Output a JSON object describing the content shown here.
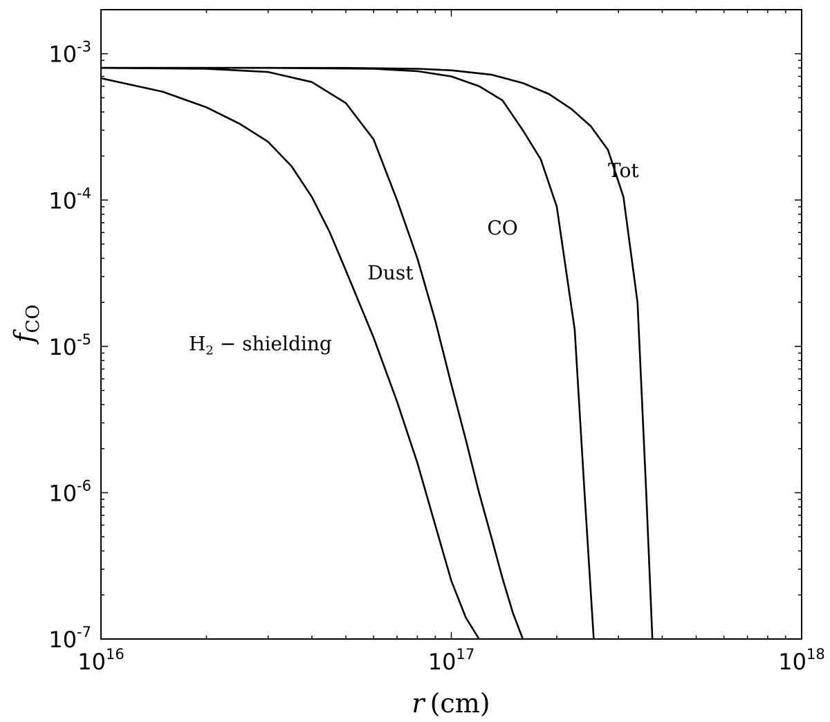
{
  "chart_data": {
    "type": "line",
    "title": "",
    "xlabel": {
      "var": "r",
      "unit": "(cm)"
    },
    "ylabel": {
      "var": "f",
      "sub": "CO"
    },
    "x_scale": "log",
    "y_scale": "log",
    "xlim": [
      1e+16,
      1e+18
    ],
    "ylim": [
      1e-07,
      0.002
    ],
    "grid": false,
    "legend": "none",
    "line_color": "#000000",
    "x_ticks": [
      {
        "value": 1e+16,
        "base": "10",
        "exp": "16"
      },
      {
        "value": 1e+17,
        "base": "10",
        "exp": "17"
      },
      {
        "value": 1e+18,
        "base": "10",
        "exp": "18"
      }
    ],
    "y_ticks": [
      {
        "value": 0.001,
        "base": "10",
        "exp": "-3"
      },
      {
        "value": 0.0001,
        "base": "10",
        "exp": "-4"
      },
      {
        "value": 1e-05,
        "base": "10",
        "exp": "-5"
      },
      {
        "value": 1e-06,
        "base": "10",
        "exp": "-6"
      },
      {
        "value": 1e-07,
        "base": "10",
        "exp": "-7"
      }
    ],
    "series": [
      {
        "name": "H2 - shielding",
        "label": {
          "main": "H",
          "sub": "2",
          "rest": " − shielding"
        },
        "x": [
          1e+16,
          1.5e+16,
          2e+16,
          2.5e+16,
          3e+16,
          3.5e+16,
          4e+16,
          4.5e+16,
          5e+16,
          5.5e+16,
          6e+16,
          7e+16,
          8e+16,
          9e+16,
          1e+17,
          1.1e+17,
          1.2e+17
        ],
        "y": [
          0.00068,
          0.00055,
          0.00043,
          0.00033,
          0.00025,
          0.00017,
          0.000105,
          6e-05,
          3.3e-05,
          1.9e-05,
          1.15e-05,
          4.2e-06,
          1.6e-06,
          6e-07,
          2.5e-07,
          1.4e-07,
          1e-07
        ]
      },
      {
        "name": "Dust",
        "label": {
          "main": "Dust"
        },
        "x": [
          1e+16,
          2e+16,
          3e+16,
          4e+16,
          5e+16,
          6e+16,
          7e+16,
          8e+16,
          9e+16,
          1e+17,
          1.1e+17,
          1.2e+17,
          1.3e+17,
          1.4e+17,
          1.5e+17,
          1.6e+17
        ],
        "y": [
          0.0008,
          0.00079,
          0.00075,
          0.00064,
          0.00046,
          0.00026,
          0.0001,
          4e-05,
          1.5e-05,
          5.5e-06,
          2.3e-06,
          1e-06,
          5e-07,
          2.6e-07,
          1.5e-07,
          1e-07
        ]
      },
      {
        "name": "CO",
        "label": {
          "main": "CO"
        },
        "x": [
          1e+16,
          3e+16,
          6e+16,
          8e+16,
          1e+17,
          1.2e+17,
          1.4e+17,
          1.6e+17,
          1.8e+17,
          2e+17,
          2.25e+17,
          2.4e+17,
          2.55e+17
        ],
        "y": [
          0.0008,
          0.0008,
          0.00079,
          0.00076,
          0.0007,
          0.0006,
          0.00048,
          0.0003,
          0.00019,
          9e-05,
          1.3e-05,
          1e-06,
          1e-07
        ]
      },
      {
        "name": "Tot",
        "label": {
          "main": "Tot"
        },
        "x": [
          1e+16,
          5e+16,
          8e+16,
          1e+17,
          1.3e+17,
          1.6e+17,
          1.9e+17,
          2.2e+17,
          2.5e+17,
          2.8e+17,
          3.1e+17,
          3.4e+17,
          3.6e+17,
          3.75e+17
        ],
        "y": [
          0.0008,
          0.0008,
          0.00079,
          0.00077,
          0.00072,
          0.00063,
          0.00053,
          0.00042,
          0.00032,
          0.00022,
          0.000105,
          2e-05,
          1e-06,
          1e-07
        ]
      }
    ],
    "annotations": [
      {
        "series": "Tot",
        "x": 3.1e+17,
        "y": 0.00016
      },
      {
        "series": "CO",
        "x": 1.4e+17,
        "y": 6.5e-05
      },
      {
        "series": "Dust",
        "x": 6.7e+16,
        "y": 3.2e-05
      },
      {
        "series": "H2 - shielding",
        "x": 2.85e+16,
        "y": 1.05e-05
      }
    ]
  }
}
